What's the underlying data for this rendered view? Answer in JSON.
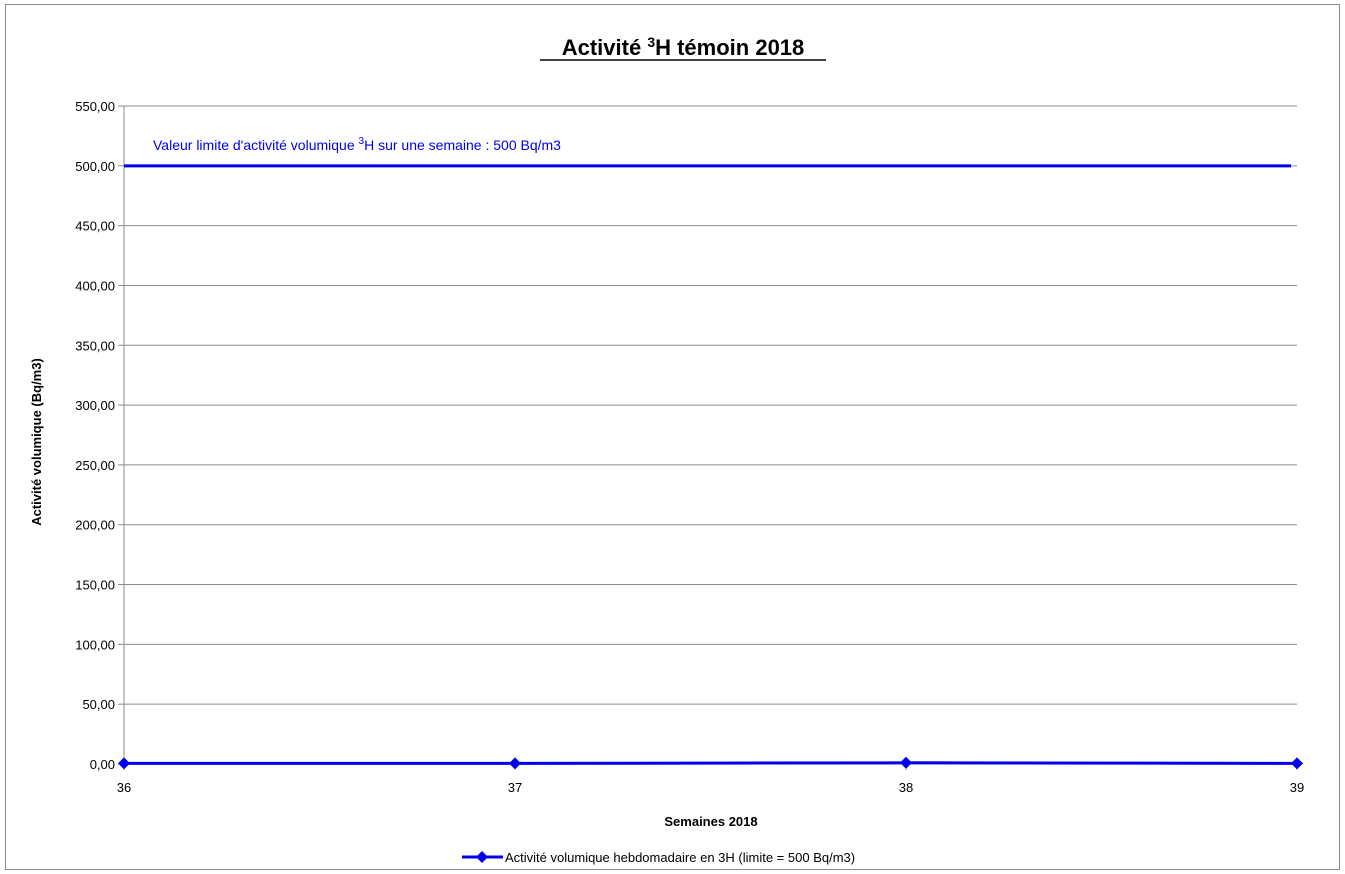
{
  "chart_data": {
    "type": "line",
    "title_main": "Activité ",
    "title_sup": "3",
    "title_rest": "H témoin 2018",
    "xlabel": "Semaines 2018",
    "ylabel": "Activité volumique (Bq/m3)",
    "x": [
      36,
      37,
      38,
      39
    ],
    "x_tick_labels": [
      "36",
      "37",
      "38",
      "39"
    ],
    "xlim": [
      36,
      39
    ],
    "ylim": [
      0,
      550
    ],
    "y_ticks": [
      0,
      50,
      100,
      150,
      200,
      250,
      300,
      350,
      400,
      450,
      500,
      550
    ],
    "y_tick_labels": [
      "0,00",
      "50,00",
      "100,00",
      "150,00",
      "200,00",
      "250,00",
      "300,00",
      "350,00",
      "400,00",
      "450,00",
      "500,00",
      "550,00"
    ],
    "grid": true,
    "series": [
      {
        "name": "Activité volumique hebdomadaire en 3H  (limite = 500 Bq/m3)",
        "color": "#0000ee",
        "marker": "diamond",
        "values": [
          0.5,
          0.5,
          1.0,
          0.5
        ]
      }
    ],
    "limit_line": {
      "value": 500,
      "color": "#0000ee",
      "label_main": "Valeur limite d'activité volumique ",
      "label_sup": "3",
      "label_rest": "H  sur une semaine : 500 Bq/m3"
    },
    "legend_position": "bottom"
  }
}
